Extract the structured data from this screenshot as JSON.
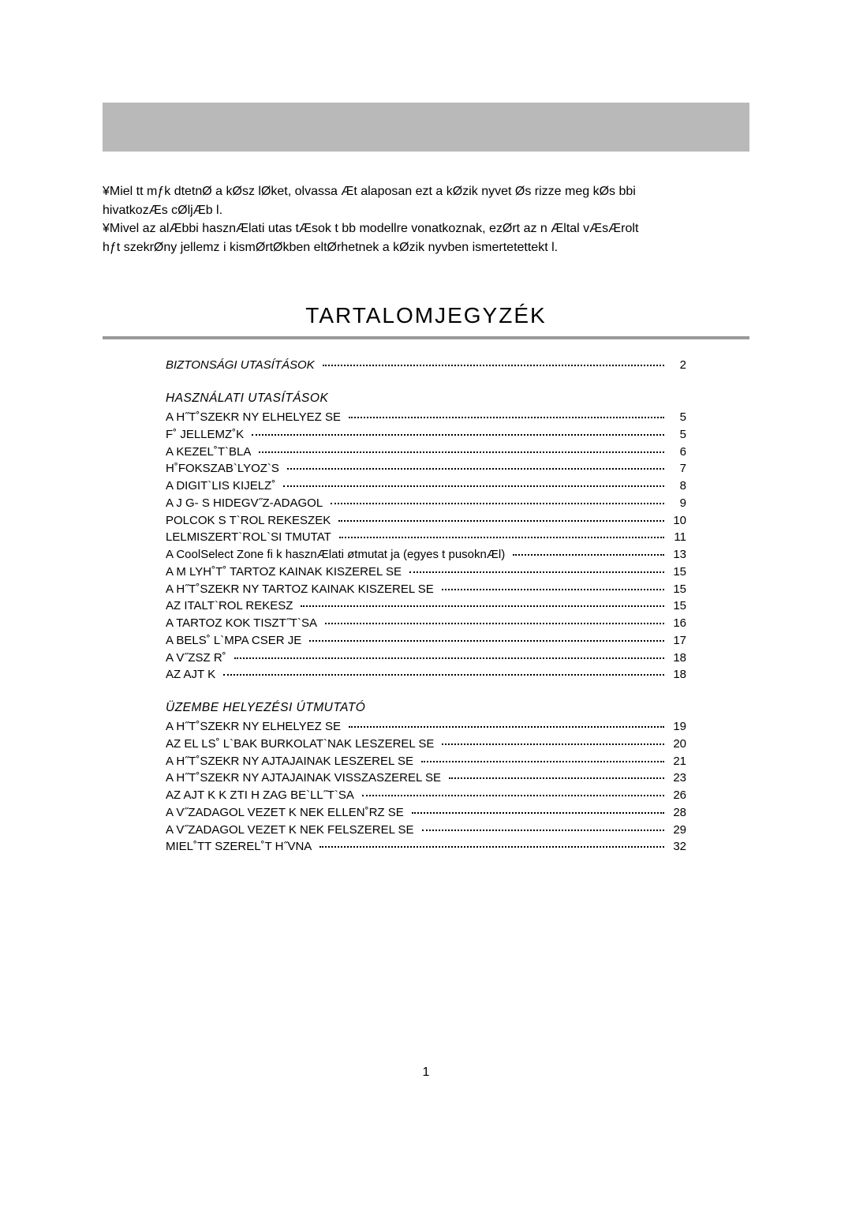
{
  "colors": {
    "header_band": "#b9b9b9",
    "rule": "#9a9a9a",
    "text": "#000000",
    "background": "#ffffff"
  },
  "intro_lines": [
    "¥Miel tt mƒk dtetnØ a kØsz lØket, olvassa Æt alaposan ezt a kØzik nyvet Øs  rizze meg kØs bbi",
    "  hivatkozÆs cØljÆb l.",
    "¥Mivel az alÆbbi hasznÆlati utas tÆsok t bb modellre vonatkoznak, ezØrt az  n Æltal vÆsÆrolt",
    "  hƒt szekrØny jellemz i kismØrtØkben eltØrhetnek a kØzik nyvben ismertetettekt l."
  ],
  "toc_title": "TARTALOMJEGYZÉK",
  "toc": [
    {
      "type": "row",
      "label": "BIZTONSÁGI UTASÍTÁSOK",
      "page": "2",
      "italic": true
    },
    {
      "type": "heading",
      "label": "HASZNÁLATI UTASÍTÁSOK"
    },
    {
      "type": "row",
      "label": "A H˝T˚SZEKR NY ELHELYEZ SE",
      "page": "5"
    },
    {
      "type": "row",
      "label": "F˚ JELLEMZ˚K",
      "page": "5"
    },
    {
      "type": "row",
      "label": "A KEZEL˚T`BLA",
      "page": "6"
    },
    {
      "type": "row",
      "label": "H˚FOKSZAB`LYOZ`S",
      "page": "7"
    },
    {
      "type": "row",
      "label": "A DIGIT`LIS KIJELZ˚",
      "page": "8"
    },
    {
      "type": "row",
      "label": "A J G-  S HIDEGV˝Z-ADAGOL",
      "page": "9"
    },
    {
      "type": "row",
      "label": "POLCOK  S T`ROL REKESZEK",
      "page": "10"
    },
    {
      "type": "row",
      "label": " LELMISZERT`ROL`SI  TMUTAT",
      "page": "11"
    },
    {
      "type": "row",
      "label": "A CoolSelect Zone  fi k hasznÆlati øtmutat ja (egyes t pusoknÆl)",
      "page": "13"
    },
    {
      "type": "row",
      "label": "A M LYH˚T˚ TARTOZ KAINAK KISZEREL SE",
      "page": "15"
    },
    {
      "type": "row",
      "label": "A H˝T˚SZEKR NY TARTOZ KAINAK KISZEREL SE",
      "page": "15"
    },
    {
      "type": "row",
      "label": "AZ ITALT`ROL  REKESZ",
      "page": "15"
    },
    {
      "type": "row",
      "label": "A TARTOZ KOK TISZT˝T`SA",
      "page": "16"
    },
    {
      "type": "row",
      "label": "A BELS˚ L`MPA CSER JE",
      "page": "17"
    },
    {
      "type": "row",
      "label": "A V˝ZSZ R˚",
      "page": "18"
    },
    {
      "type": "row",
      "label": "AZ AJT K",
      "page": "18"
    },
    {
      "type": "heading",
      "label": "ÜZEMBE HELYEZÉSI ÚTMUTATÓ"
    },
    {
      "type": "row",
      "label": "A H˝T˚SZEKR NY ELHELYEZ SE",
      "page": "19"
    },
    {
      "type": "row",
      "label": "AZ EL LS˚ L`BAK BURKOLAT`NAK LESZEREL SE",
      "page": "20"
    },
    {
      "type": "row",
      "label": "A H˝T˚SZEKR NY AJTAJAINAK LESZEREL SE",
      "page": "21"
    },
    {
      "type": "row",
      "label": "A H˝T˚SZEKR NY AJTAJAINAK VISSZASZEREL SE",
      "page": "23"
    },
    {
      "type": "row",
      "label": "AZ AJT K K ZTI H ZAG BE`LL˝T`SA",
      "page": "26"
    },
    {
      "type": "row",
      "label": "A V˝ZADAGOL  VEZET K NEK ELLEN˚RZ SE",
      "page": "28"
    },
    {
      "type": "row",
      "label": "A V˝ZADAGOL  VEZET K NEK FELSZEREL SE",
      "page": "29"
    },
    {
      "type": "row",
      "label": "MIEL˚TT SZEREL˚T H˝VNA",
      "page": "32"
    }
  ],
  "page_number": "1"
}
